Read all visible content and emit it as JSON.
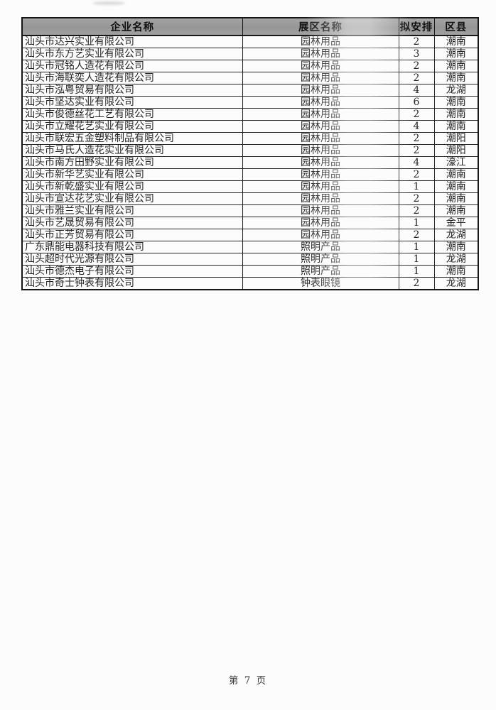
{
  "page": {
    "footer": "第 7 页"
  },
  "colors": {
    "page_bg": "#fcfcfc",
    "header_bg": "#9b9b9b",
    "border": "#161616",
    "text": "#242424"
  },
  "table": {
    "headers": [
      "企业名称",
      "展区名称",
      "拟安排",
      "区县"
    ],
    "rows": [
      {
        "company": "汕头市达兴实业有限公司",
        "zone": "园林用品",
        "count": "2",
        "district": "潮南"
      },
      {
        "company": "汕头市东方艺实业有限公司",
        "zone": "园林用品",
        "count": "3",
        "district": "潮南"
      },
      {
        "company": "汕头市冠铭人造花有限公司",
        "zone": "园林用品",
        "count": "2",
        "district": "潮南"
      },
      {
        "company": "汕头市海联奕人造花有限公司",
        "zone": "园林用品",
        "count": "2",
        "district": "潮南"
      },
      {
        "company": "汕头市泓粤贸易有限公司",
        "zone": "园林用品",
        "count": "4",
        "district": "龙湖"
      },
      {
        "company": "汕头市坚达实业有限公司",
        "zone": "园林用品",
        "count": "6",
        "district": "潮南"
      },
      {
        "company": "汕头市俊德丝花工艺有限公司",
        "zone": "园林用品",
        "count": "2",
        "district": "潮南"
      },
      {
        "company": "汕头市立耀花艺实业有限公司",
        "zone": "园林用品",
        "count": "4",
        "district": "潮南"
      },
      {
        "company": "汕头市联宏五金塑料制品有限公司",
        "zone": "园林用品",
        "count": "2",
        "district": "潮阳"
      },
      {
        "company": "汕头市马氏人造花实业有限公司",
        "zone": "园林用品",
        "count": "2",
        "district": "潮阳"
      },
      {
        "company": "汕头市南方田野实业有限公司",
        "zone": "园林用品",
        "count": "4",
        "district": "濠江"
      },
      {
        "company": "汕头市新华艺实业有限公司",
        "zone": "园林用品",
        "count": "2",
        "district": "潮南"
      },
      {
        "company": "汕头市新乾盛实业有限公司",
        "zone": "园林用品",
        "count": "1",
        "district": "潮南"
      },
      {
        "company": "汕头市宣达花艺实业有限公司",
        "zone": "园林用品",
        "count": "2",
        "district": "潮南"
      },
      {
        "company": "汕头市雅兰实业有限公司",
        "zone": "园林用品",
        "count": "2",
        "district": "潮南"
      },
      {
        "company": "汕头市艺晟贸易有限公司",
        "zone": "园林用品",
        "count": "1",
        "district": "金平"
      },
      {
        "company": "汕头市正芳贸易有限公司",
        "zone": "园林用品",
        "count": "2",
        "district": "龙湖"
      },
      {
        "company": "广东鼎能电器科技有限公司",
        "zone": "照明产品",
        "count": "1",
        "district": "潮南"
      },
      {
        "company": "汕头超时代光源有限公司",
        "zone": "照明产品",
        "count": "1",
        "district": "龙湖"
      },
      {
        "company": "汕头市德杰电子有限公司",
        "zone": "照明产品",
        "count": "1",
        "district": "潮南"
      },
      {
        "company": "汕头市奇士钟表有限公司",
        "zone": "钟表眼镜",
        "count": "2",
        "district": "龙湖"
      }
    ]
  }
}
